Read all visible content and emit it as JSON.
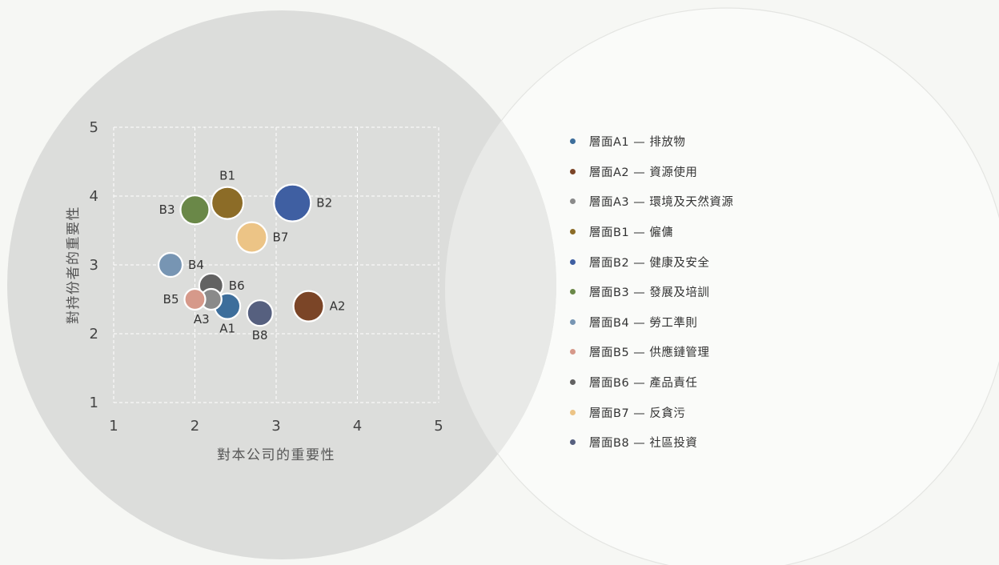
{
  "chart_data": {
    "type": "scatter",
    "title": "",
    "xlabel": "對本公司的重要性",
    "ylabel": "對持份者的重要性",
    "xlim": [
      1,
      5
    ],
    "ylim": [
      1,
      5
    ],
    "xticks": [
      "1",
      "2",
      "3",
      "4",
      "5"
    ],
    "yticks": [
      "1",
      "2",
      "3",
      "4",
      "5"
    ],
    "grid": true,
    "legend_position": "right",
    "points": [
      {
        "id": "A1",
        "label": "A1",
        "x": 2.4,
        "y": 2.4,
        "size": 16,
        "color": "#3d6e9b",
        "label_pos": "below"
      },
      {
        "id": "A2",
        "label": "A2",
        "x": 3.4,
        "y": 2.4,
        "size": 19,
        "color": "#7b4527",
        "label_pos": "right"
      },
      {
        "id": "A3",
        "label": "A3",
        "x": 2.2,
        "y": 2.5,
        "size": 13,
        "color": "#8a8a8a",
        "label_pos": "below-left"
      },
      {
        "id": "B1",
        "label": "B1",
        "x": 2.4,
        "y": 3.9,
        "size": 20,
        "color": "#8c6c27",
        "label_pos": "above"
      },
      {
        "id": "B2",
        "label": "B2",
        "x": 3.2,
        "y": 3.9,
        "size": 23,
        "color": "#3f5fa2",
        "label_pos": "right"
      },
      {
        "id": "B3",
        "label": "B3",
        "x": 2.0,
        "y": 3.8,
        "size": 18,
        "color": "#6a8848",
        "label_pos": "left"
      },
      {
        "id": "B4",
        "label": "B4",
        "x": 1.7,
        "y": 3.0,
        "size": 15,
        "color": "#7795b3",
        "label_pos": "right"
      },
      {
        "id": "B5",
        "label": "B5",
        "x": 2.0,
        "y": 2.5,
        "size": 13,
        "color": "#d6998a",
        "label_pos": "left"
      },
      {
        "id": "B6",
        "label": "B6",
        "x": 2.2,
        "y": 2.7,
        "size": 15,
        "color": "#626262",
        "label_pos": "right"
      },
      {
        "id": "B7",
        "label": "B7",
        "x": 2.7,
        "y": 3.4,
        "size": 19,
        "color": "#ecc486",
        "label_pos": "right"
      },
      {
        "id": "B8",
        "label": "B8",
        "x": 2.8,
        "y": 2.3,
        "size": 16,
        "color": "#56607f",
        "label_pos": "below"
      }
    ]
  },
  "legend": {
    "items": [
      {
        "text": "層面A1 — 排放物",
        "color": "#3d6e9b"
      },
      {
        "text": "層面A2 — 資源使用",
        "color": "#7b4527"
      },
      {
        "text": "層面A3 — 環境及天然資源",
        "color": "#8a8a8a"
      },
      {
        "text": "層面B1 — 僱傭",
        "color": "#8c6c27"
      },
      {
        "text": "層面B2 — 健康及安全",
        "color": "#3f5fa2"
      },
      {
        "text": "層面B3 — 發展及培訓",
        "color": "#6a8848"
      },
      {
        "text": "層面B4 — 勞工準則",
        "color": "#7795b3"
      },
      {
        "text": "層面B5 — 供應鏈管理",
        "color": "#d6998a"
      },
      {
        "text": "層面B6 — 產品責任",
        "color": "#626262"
      },
      {
        "text": "層面B7 — 反貪污",
        "color": "#ecc486"
      },
      {
        "text": "層面B8 — 社區投資",
        "color": "#56607f"
      }
    ]
  }
}
